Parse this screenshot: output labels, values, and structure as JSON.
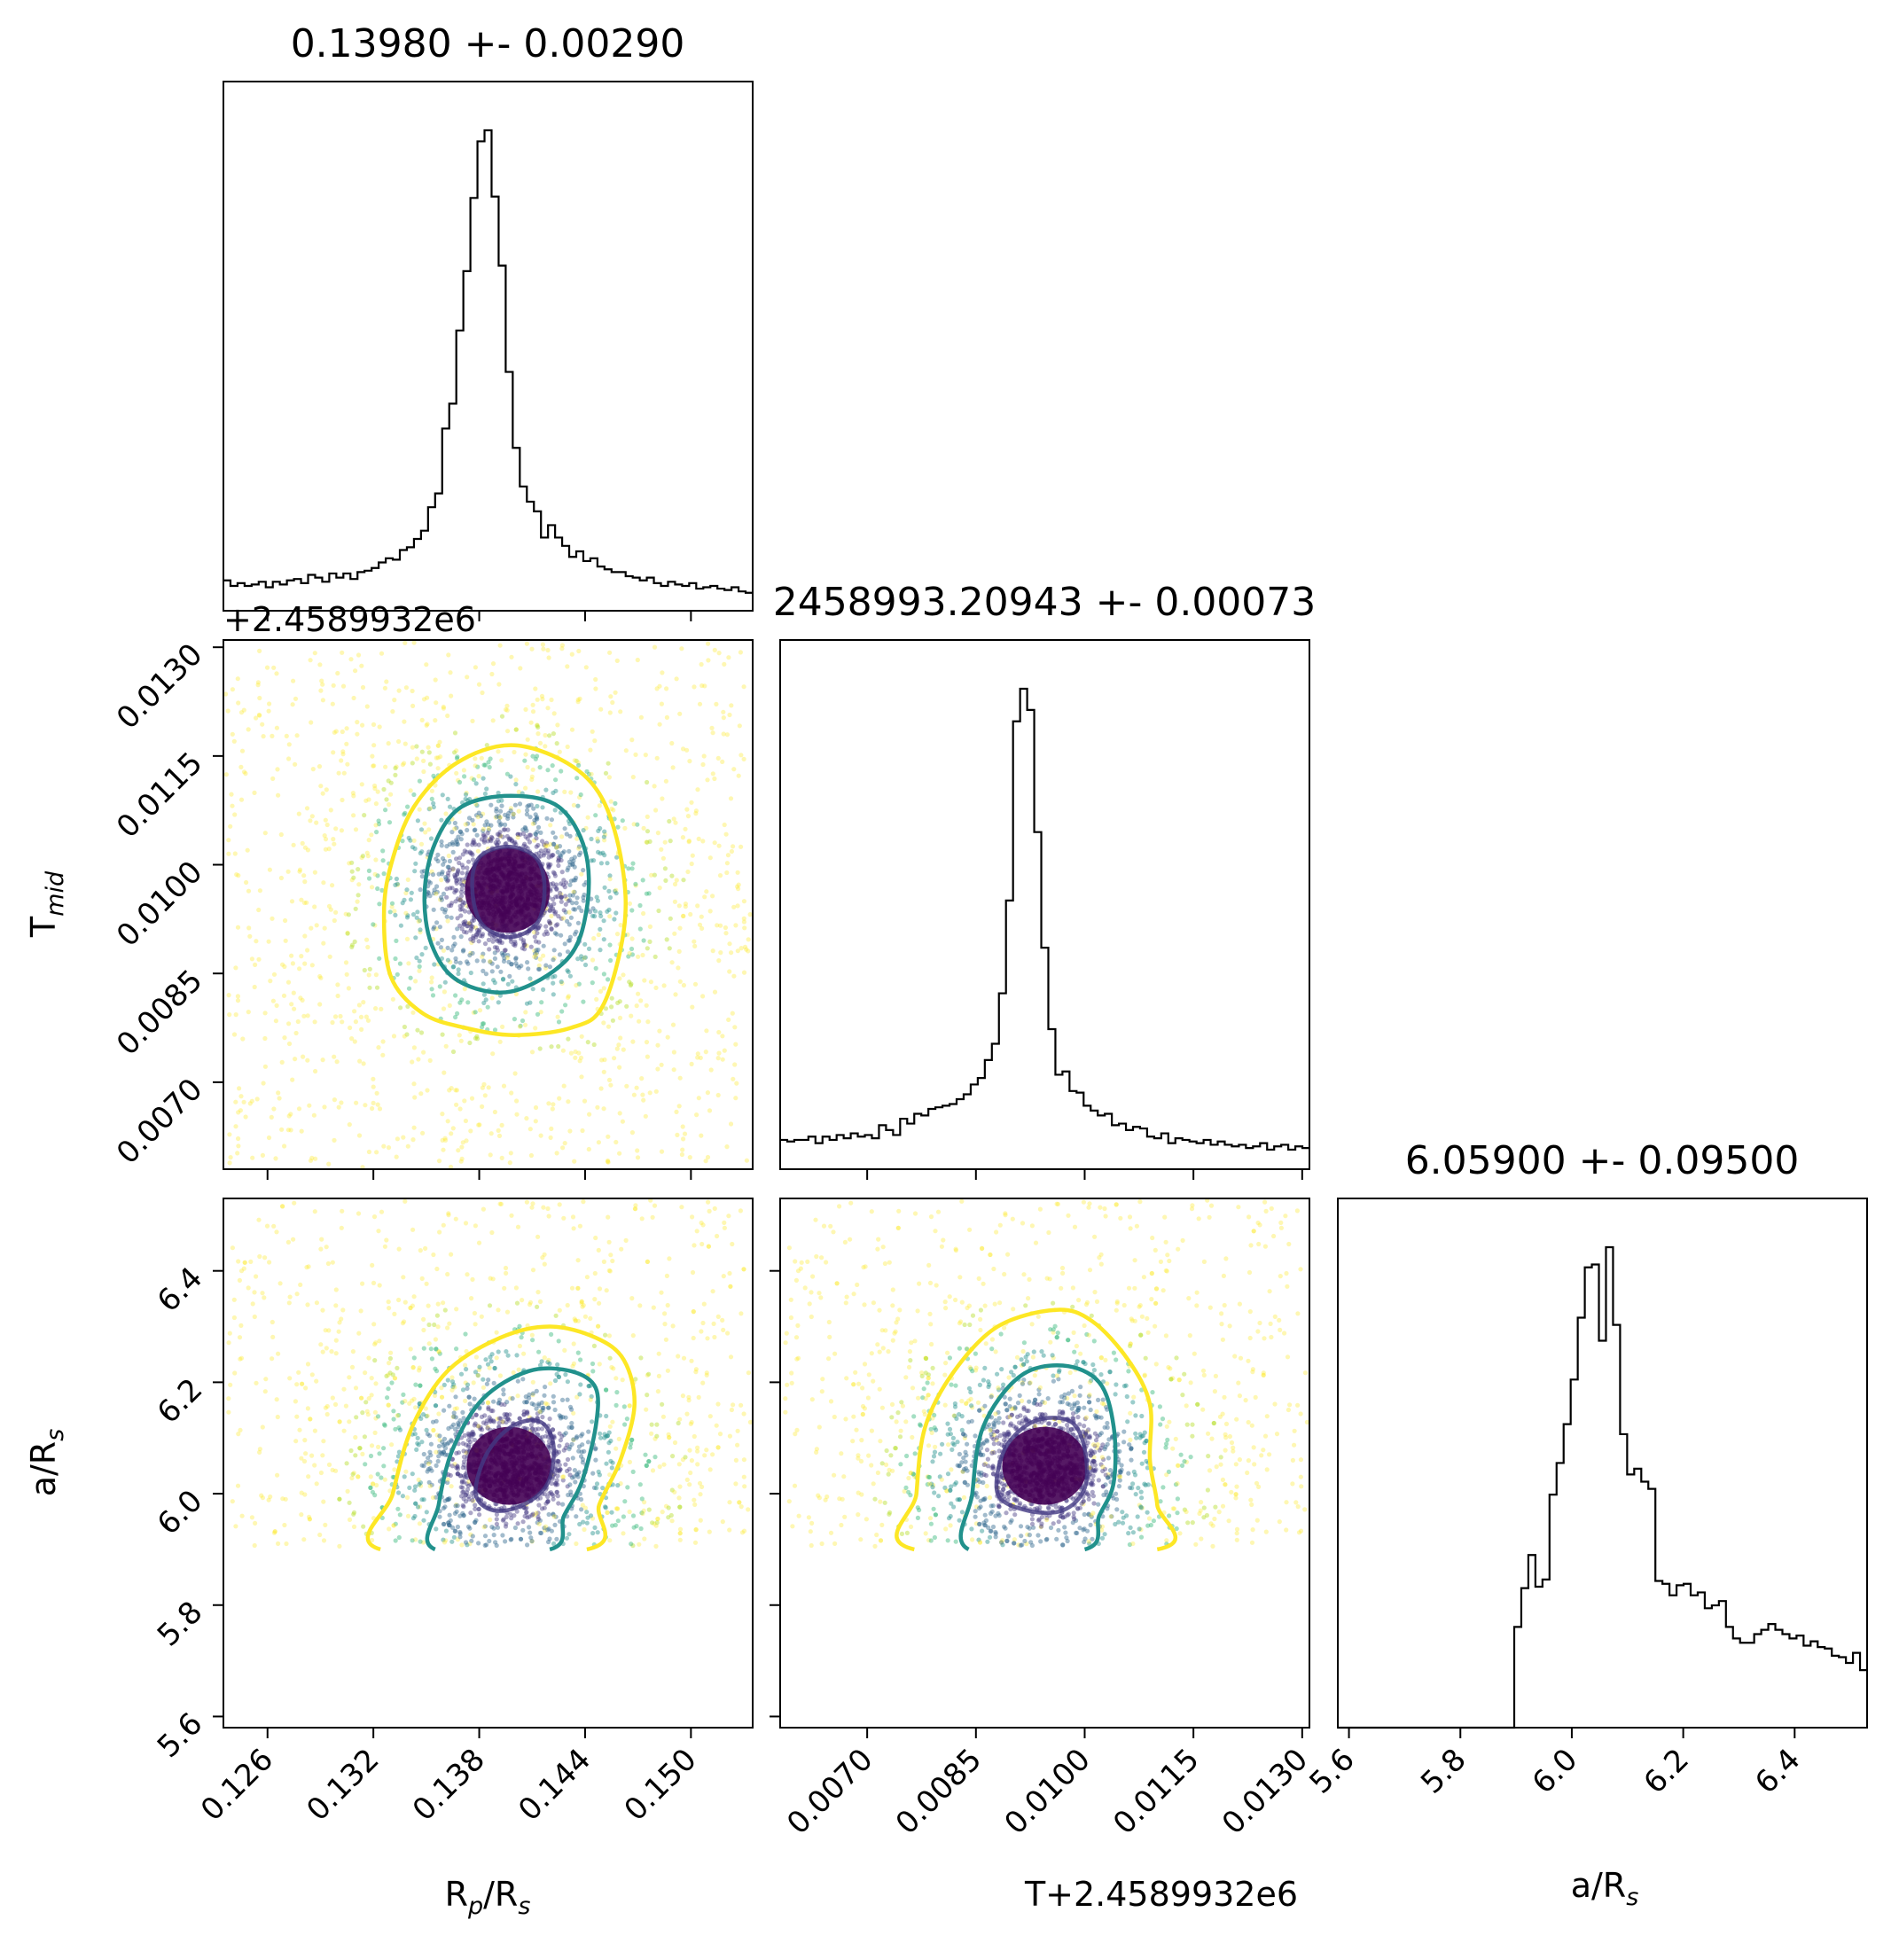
{
  "chart_data": {
    "type": "corner",
    "parameters": [
      {
        "key": "rp",
        "label_main": "R",
        "label_sub": "p",
        "label_tail": "/R",
        "label_sub2": "s",
        "range": [
          0.1235,
          0.1535
        ],
        "ticks": [
          0.126,
          0.132,
          0.138,
          0.144,
          0.15
        ],
        "tick_labels": [
          "0.126",
          "0.132",
          "0.138",
          "0.144",
          "0.150"
        ]
      },
      {
        "key": "tmid",
        "label_main": "T",
        "label_sub": "mid",
        "label_tail": "",
        "label_sub2": "",
        "range": [
          0.0058,
          0.0131
        ],
        "ticks": [
          0.007,
          0.0085,
          0.01,
          0.0115,
          0.013
        ],
        "tick_labels": [
          "0.0070",
          "0.0085",
          "0.0100",
          "0.0115",
          "0.0130"
        ],
        "offset_label": "+2.4589932e6"
      },
      {
        "key": "ars",
        "label_main": "a/R",
        "label_sub": "s",
        "label_tail": "",
        "label_sub2": "",
        "range": [
          5.58,
          6.53
        ],
        "ticks": [
          5.6,
          5.8,
          6.0,
          6.2,
          6.4
        ],
        "tick_labels": [
          "5.6",
          "5.8",
          "6.0",
          "6.2",
          "6.4"
        ]
      }
    ],
    "titles": [
      "0.13980 +- 0.00290",
      "2458993.20943 +- 0.00073",
      "6.05900 +- 0.09500"
    ],
    "x_offset_label": "T+2.4589932e6",
    "histograms": [
      {
        "param": "rp",
        "bins": 75,
        "counts": [
          22,
          18,
          20,
          18,
          19,
          21,
          17,
          21,
          19,
          22,
          23,
          20,
          26,
          24,
          21,
          27,
          24,
          27,
          23,
          28,
          29,
          31,
          35,
          38,
          37,
          44,
          46,
          52,
          58,
          75,
          85,
          132,
          150,
          203,
          246,
          299,
          340,
          348,
          300,
          250,
          173,
          118,
          90,
          79,
          72,
          53,
          62,
          53,
          47,
          39,
          43,
          36,
          38,
          32,
          30,
          28,
          28,
          25,
          24,
          22,
          24,
          20,
          18,
          21,
          19,
          18,
          20,
          16,
          17,
          18,
          16,
          15,
          17,
          14,
          13
        ]
      },
      {
        "param": "tmid",
        "bins": 75,
        "counts": [
          18,
          17,
          18,
          18,
          20,
          16,
          20,
          18,
          21,
          19,
          22,
          20,
          21,
          19,
          27,
          24,
          21,
          31,
          28,
          34,
          33,
          37,
          38,
          39,
          40,
          43,
          46,
          52,
          56,
          67,
          77,
          108,
          165,
          275,
          295,
          282,
          207,
          136,
          86,
          58,
          60,
          48,
          47,
          39,
          36,
          33,
          34,
          27,
          28,
          24,
          26,
          25,
          20,
          19,
          22,
          16,
          19,
          18,
          17,
          16,
          18,
          15,
          17,
          15,
          14,
          15,
          13,
          14,
          16,
          12,
          14,
          15,
          12,
          14,
          13
        ]
      },
      {
        "param": "ars",
        "bins": 75,
        "counts": [
          0,
          0,
          0,
          0,
          0,
          0,
          0,
          0,
          0,
          0,
          0,
          0,
          0,
          0,
          0,
          0,
          0,
          0,
          0,
          0,
          0,
          0,
          0,
          0,
          0,
          70,
          97,
          120,
          98,
          103,
          162,
          184,
          211,
          242,
          285,
          320,
          322,
          269,
          334,
          280,
          204,
          176,
          180,
          171,
          166,
          102,
          100,
          92,
          99,
          100,
          92,
          94,
          83,
          85,
          88,
          70,
          62,
          59,
          59,
          65,
          68,
          72,
          68,
          65,
          62,
          64,
          57,
          60,
          56,
          55,
          50,
          49,
          45,
          52,
          40
        ]
      }
    ],
    "scatter_panels": [
      {
        "x": "rp",
        "y": "tmid",
        "center": [
          0.1396,
          0.00965
        ]
      },
      {
        "x": "rp",
        "y": "ars",
        "center": [
          0.1397,
          6.05
        ]
      },
      {
        "x": "tmid",
        "y": "ars",
        "center": [
          0.00945,
          6.05
        ]
      }
    ],
    "contours": [
      {
        "x": "rp",
        "y": "tmid",
        "color": "#fde725",
        "points": [
          [
            0.1326,
            0.0093
          ],
          [
            0.133,
            0.01
          ],
          [
            0.1343,
            0.0108
          ],
          [
            0.1367,
            0.0114
          ],
          [
            0.1398,
            0.01165
          ],
          [
            0.143,
            0.0114
          ],
          [
            0.145,
            0.0109
          ],
          [
            0.1461,
            0.01
          ],
          [
            0.1462,
            0.0091
          ],
          [
            0.145,
            0.00805
          ],
          [
            0.1432,
            0.00775
          ],
          [
            0.14,
            0.00765
          ],
          [
            0.1372,
            0.00775
          ],
          [
            0.1348,
            0.00795
          ],
          [
            0.133,
            0.00845
          ]
        ]
      },
      {
        "x": "rp",
        "y": "tmid",
        "color": "#21918c",
        "points": [
          [
            0.1349,
            0.0096
          ],
          [
            0.1355,
            0.0103
          ],
          [
            0.137,
            0.0108
          ],
          [
            0.1398,
            0.01095
          ],
          [
            0.1425,
            0.0108
          ],
          [
            0.144,
            0.0102
          ],
          [
            0.1441,
            0.0094
          ],
          [
            0.143,
            0.0087
          ],
          [
            0.1398,
            0.00825
          ],
          [
            0.1368,
            0.0084
          ],
          [
            0.1353,
            0.0089
          ]
        ]
      },
      {
        "x": "rp",
        "y": "tmid",
        "color": "#443a83",
        "points": [
          [
            0.1376,
            0.0097
          ],
          [
            0.138,
            0.0101
          ],
          [
            0.1396,
            0.01025
          ],
          [
            0.1412,
            0.0101
          ],
          [
            0.1417,
            0.0097
          ],
          [
            0.1413,
            0.0092
          ],
          [
            0.1397,
            0.009
          ],
          [
            0.1381,
            0.0092
          ]
        ]
      },
      {
        "x": "rp",
        "y": "ars",
        "color": "#fde725",
        "points": [
          [
            0.1324,
            5.9
          ],
          [
            0.1331,
            6.0
          ],
          [
            0.1342,
            6.12
          ],
          [
            0.1362,
            6.22
          ],
          [
            0.1392,
            6.28
          ],
          [
            0.142,
            6.3
          ],
          [
            0.1446,
            6.28
          ],
          [
            0.1462,
            6.24
          ],
          [
            0.1468,
            6.16
          ],
          [
            0.146,
            6.06
          ],
          [
            0.1448,
            5.98
          ],
          [
            0.1441,
            5.9
          ]
        ]
      },
      {
        "x": "rp",
        "y": "ars",
        "color": "#21918c",
        "points": [
          [
            0.1355,
            5.9
          ],
          [
            0.1357,
            5.98
          ],
          [
            0.1365,
            6.08
          ],
          [
            0.1382,
            6.17
          ],
          [
            0.1408,
            6.22
          ],
          [
            0.1432,
            6.22
          ],
          [
            0.1446,
            6.19
          ],
          [
            0.1446,
            6.12
          ],
          [
            0.1438,
            6.02
          ],
          [
            0.1428,
            5.96
          ],
          [
            0.142,
            5.9
          ]
        ]
      },
      {
        "x": "rp",
        "y": "ars",
        "color": "#443a83",
        "points": [
          [
            0.1378,
            6.0
          ],
          [
            0.1384,
            6.07
          ],
          [
            0.1398,
            6.12
          ],
          [
            0.1414,
            6.13
          ],
          [
            0.1422,
            6.09
          ],
          [
            0.1419,
            6.02
          ],
          [
            0.1405,
            5.98
          ],
          [
            0.1388,
            5.97
          ]
        ]
      },
      {
        "x": "tmid",
        "y": "ars",
        "color": "#fde725",
        "points": [
          [
            0.00765,
            5.9
          ],
          [
            0.00768,
            6.0
          ],
          [
            0.0078,
            6.12
          ],
          [
            0.0082,
            6.22
          ],
          [
            0.0088,
            6.3
          ],
          [
            0.0096,
            6.33
          ],
          [
            0.0101,
            6.31
          ],
          [
            0.0106,
            6.24
          ],
          [
            0.0109,
            6.16
          ],
          [
            0.0109,
            6.06
          ],
          [
            0.011,
            5.98
          ],
          [
            0.011,
            5.9
          ]
        ]
      },
      {
        "x": "tmid",
        "y": "ars",
        "color": "#21918c",
        "points": [
          [
            0.0084,
            5.9
          ],
          [
            0.00845,
            6.0
          ],
          [
            0.0086,
            6.12
          ],
          [
            0.0091,
            6.21
          ],
          [
            0.0097,
            6.23
          ],
          [
            0.0102,
            6.2
          ],
          [
            0.0104,
            6.12
          ],
          [
            0.0104,
            6.02
          ],
          [
            0.0102,
            5.96
          ],
          [
            0.01,
            5.9
          ]
        ]
      },
      {
        "x": "tmid",
        "y": "ars",
        "color": "#443a83",
        "points": [
          [
            0.0088,
            6.0
          ],
          [
            0.0089,
            6.08
          ],
          [
            0.0093,
            6.13
          ],
          [
            0.0098,
            6.13
          ],
          [
            0.01,
            6.08
          ],
          [
            0.01,
            6.01
          ],
          [
            0.0097,
            5.97
          ],
          [
            0.0092,
            5.97
          ]
        ]
      }
    ]
  }
}
